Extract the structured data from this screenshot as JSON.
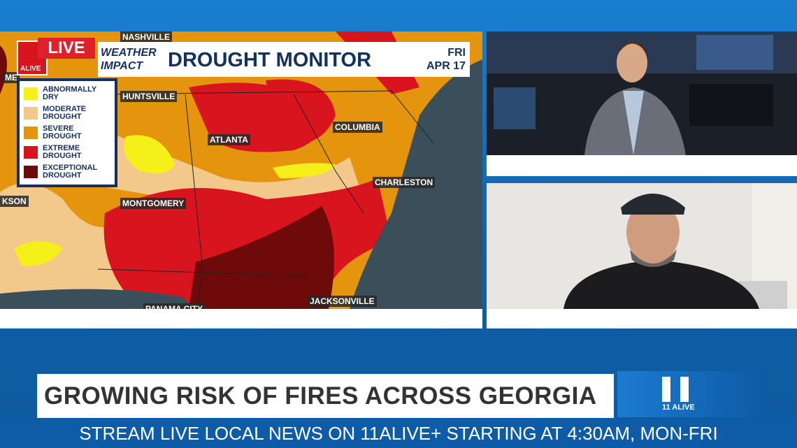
{
  "map": {
    "title": "DROUGHT MONITOR",
    "day": "FRI",
    "date": "APR 17",
    "segment": "WEATHER IMPACT",
    "segment_visible": [
      "THER",
      "IMPACT"
    ],
    "live_badge": "LIVE",
    "station_logo": "11 ALIVE",
    "cities": [
      "NASHVILLE",
      "HUNTSVILLE",
      "ATLANTA",
      "COLUMBIA",
      "CHARLESTON",
      "MONTGOMERY",
      "JACKSONVILLE",
      "PANAMA CITY",
      "KSON",
      "ME"
    ],
    "legend": [
      {
        "label": "ABNORMALLY DRY",
        "color": "#f5ef1a"
      },
      {
        "label": "MODERATE DROUGHT",
        "color": "#f2c98a"
      },
      {
        "label": "SEVERE DROUGHT",
        "color": "#e5940e"
      },
      {
        "label": "EXTREME DROUGHT",
        "color": "#d8141e"
      },
      {
        "label": "EXCEPTIONAL DROUGHT",
        "color": "#6e0a0a"
      }
    ]
  },
  "lower_third": {
    "headline": "GROWING RISK OF FIRES ACROSS GEORGIA",
    "logo": "11 ALIVE"
  },
  "ticker": {
    "text": "STREAM LIVE LOCAL NEWS ON 11ALIVE+ STARTING AT 4:30AM, MON-FRI"
  }
}
